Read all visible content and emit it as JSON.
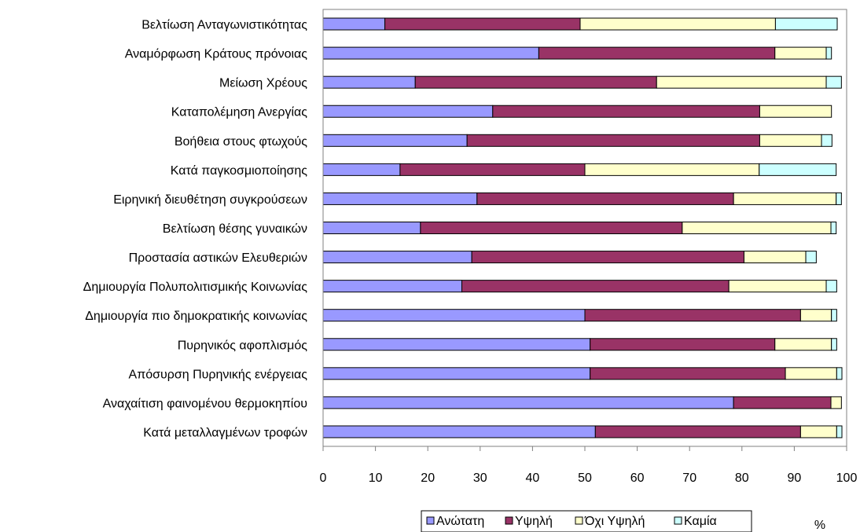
{
  "chart_data": {
    "type": "bar",
    "orientation": "horizontal",
    "stacked": true,
    "categories": [
      "Βελτίωση Ανταγωνιστικότητας",
      "Αναμόρφωση Κράτους πρόνοιας",
      "Μείωση Χρέους",
      "Καταπολέμηση Ανεργίας",
      "Βοήθεια στους φτωχούς",
      "Κατά παγκοσμιοποίησης",
      "Ειρηνική διευθέτηση συγκρούσεων",
      "Βελτίωση θέσης γυναικών",
      "Προστασία αστικών Ελευθεριών",
      "Δημιουργία Πολυπολιτισμικής Κοινωνίας",
      "Δημιουργία πιο δημοκρατικής κοινωνίας",
      "Πυρηνικός αφοπλισμός",
      "Απόσυρση Πυρηνικής ενέργειας",
      "Αναχαίτιση φαινομένου θερμοκηπίου",
      "Κατά μεταλλαγμένων τροφών"
    ],
    "series": [
      {
        "name": "Ανώτατη",
        "color": "#9999ff",
        "values": [
          11.8,
          41.2,
          17.6,
          32.4,
          27.5,
          14.7,
          29.4,
          18.6,
          28.4,
          26.5,
          50.0,
          51.0,
          51.0,
          78.4,
          52.0
        ]
      },
      {
        "name": "Υψηλή",
        "color": "#993366",
        "values": [
          37.3,
          45.1,
          46.1,
          51.0,
          55.9,
          35.3,
          49.0,
          50.0,
          52.0,
          51.0,
          41.2,
          35.3,
          37.3,
          18.6,
          39.2
        ]
      },
      {
        "name": "Όχι Υψηλή",
        "color": "#ffffcc",
        "values": [
          37.3,
          9.8,
          32.4,
          13.7,
          11.8,
          33.3,
          19.6,
          28.4,
          11.8,
          18.6,
          5.9,
          10.8,
          9.8,
          2.0,
          6.9
        ]
      },
      {
        "name": "Καμία",
        "color": "#ccffff",
        "values": [
          11.8,
          1.0,
          2.9,
          0.0,
          2.0,
          14.7,
          1.0,
          1.0,
          2.0,
          2.0,
          1.0,
          1.0,
          1.0,
          0.0,
          1.0
        ]
      }
    ],
    "xlim": [
      0,
      100
    ],
    "xticks": [
      "0",
      "10",
      "20",
      "30",
      "40",
      "50",
      "60",
      "70",
      "80",
      "90",
      "100"
    ],
    "xlabel": "%",
    "ylabel": "",
    "title": "",
    "grid": false,
    "legend": "bottom-center"
  }
}
